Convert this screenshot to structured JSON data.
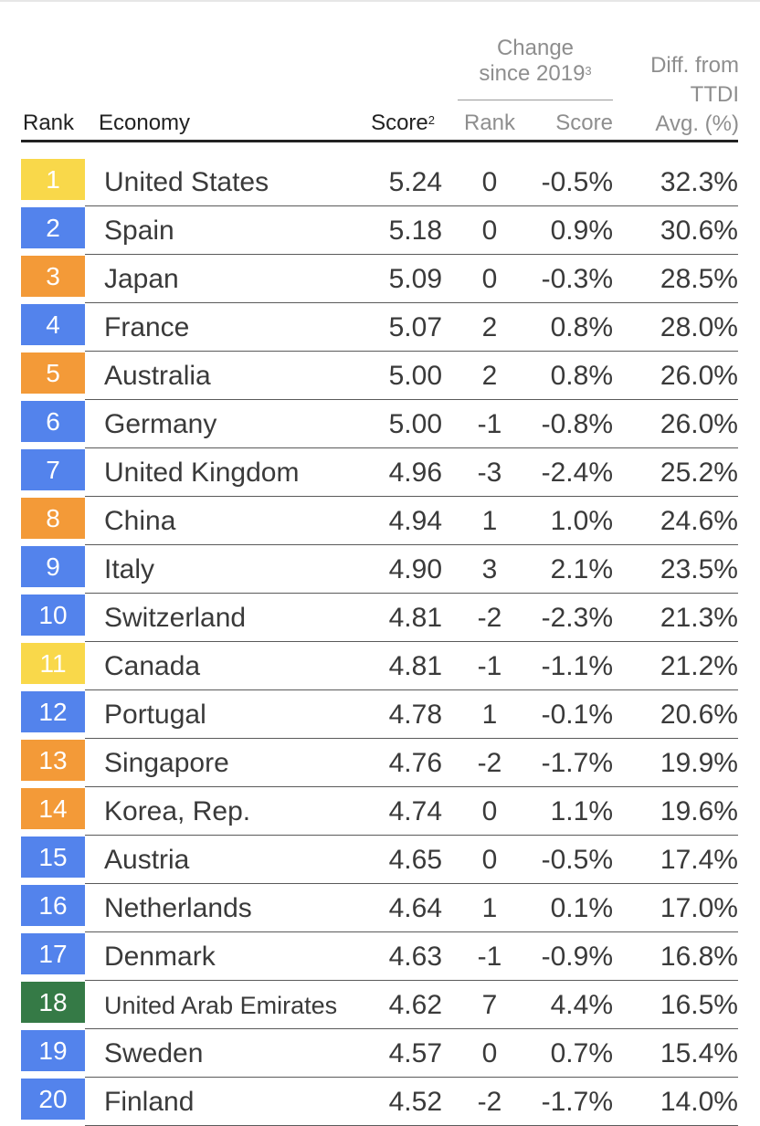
{
  "colors": {
    "yellow": "#f9d84a",
    "blue": "#5383ec",
    "orange": "#f39a38",
    "green": "#357a46"
  },
  "header": {
    "rank": "Rank",
    "economy": "Economy",
    "score": "Score",
    "score_sup": "2",
    "change_line1": "Change",
    "change_line2": "since 2019",
    "change_sup": "3",
    "change_rank": "Rank",
    "change_score": "Score",
    "diff_line1": "Diff. from",
    "diff_line2": "TTDI",
    "diff_line3": "Avg. (%)"
  },
  "rows": [
    {
      "rank": "1",
      "economy": "United States",
      "score": "5.24",
      "rank_change": "0",
      "score_change": "-0.5%",
      "diff": "32.3%",
      "color": "yellow"
    },
    {
      "rank": "2",
      "economy": "Spain",
      "score": "5.18",
      "rank_change": "0",
      "score_change": "0.9%",
      "diff": "30.6%",
      "color": "blue"
    },
    {
      "rank": "3",
      "economy": "Japan",
      "score": "5.09",
      "rank_change": "0",
      "score_change": "-0.3%",
      "diff": "28.5%",
      "color": "orange"
    },
    {
      "rank": "4",
      "economy": "France",
      "score": "5.07",
      "rank_change": "2",
      "score_change": "0.8%",
      "diff": "28.0%",
      "color": "blue"
    },
    {
      "rank": "5",
      "economy": "Australia",
      "score": "5.00",
      "rank_change": "2",
      "score_change": "0.8%",
      "diff": "26.0%",
      "color": "orange"
    },
    {
      "rank": "6",
      "economy": "Germany",
      "score": "5.00",
      "rank_change": "-1",
      "score_change": "-0.8%",
      "diff": "26.0%",
      "color": "blue"
    },
    {
      "rank": "7",
      "economy": "United Kingdom",
      "score": "4.96",
      "rank_change": "-3",
      "score_change": "-2.4%",
      "diff": "25.2%",
      "color": "blue"
    },
    {
      "rank": "8",
      "economy": "China",
      "score": "4.94",
      "rank_change": "1",
      "score_change": "1.0%",
      "diff": "24.6%",
      "color": "orange"
    },
    {
      "rank": "9",
      "economy": "Italy",
      "score": "4.90",
      "rank_change": "3",
      "score_change": "2.1%",
      "diff": "23.5%",
      "color": "blue"
    },
    {
      "rank": "10",
      "economy": "Switzerland",
      "score": "4.81",
      "rank_change": "-2",
      "score_change": "-2.3%",
      "diff": "21.3%",
      "color": "blue"
    },
    {
      "rank": "11",
      "economy": "Canada",
      "score": "4.81",
      "rank_change": "-1",
      "score_change": "-1.1%",
      "diff": "21.2%",
      "color": "yellow"
    },
    {
      "rank": "12",
      "economy": "Portugal",
      "score": "4.78",
      "rank_change": "1",
      "score_change": "-0.1%",
      "diff": "20.6%",
      "color": "blue"
    },
    {
      "rank": "13",
      "economy": "Singapore",
      "score": "4.76",
      "rank_change": "-2",
      "score_change": "-1.7%",
      "diff": "19.9%",
      "color": "orange"
    },
    {
      "rank": "14",
      "economy": "Korea, Rep.",
      "score": "4.74",
      "rank_change": "0",
      "score_change": "1.1%",
      "diff": "19.6%",
      "color": "orange"
    },
    {
      "rank": "15",
      "economy": "Austria",
      "score": "4.65",
      "rank_change": "0",
      "score_change": "-0.5%",
      "diff": "17.4%",
      "color": "blue"
    },
    {
      "rank": "16",
      "economy": "Netherlands",
      "score": "4.64",
      "rank_change": "1",
      "score_change": "0.1%",
      "diff": "17.0%",
      "color": "blue"
    },
    {
      "rank": "17",
      "economy": "Denmark",
      "score": "4.63",
      "rank_change": "-1",
      "score_change": "-0.9%",
      "diff": "16.8%",
      "color": "blue"
    },
    {
      "rank": "18",
      "economy": "United Arab Emirates",
      "score": "4.62",
      "rank_change": "7",
      "score_change": "4.4%",
      "diff": "16.5%",
      "color": "green"
    },
    {
      "rank": "19",
      "economy": "Sweden",
      "score": "4.57",
      "rank_change": "0",
      "score_change": "0.7%",
      "diff": "15.4%",
      "color": "blue"
    },
    {
      "rank": "20",
      "economy": "Finland",
      "score": "4.52",
      "rank_change": "-2",
      "score_change": "-1.7%",
      "diff": "14.0%",
      "color": "blue"
    }
  ]
}
